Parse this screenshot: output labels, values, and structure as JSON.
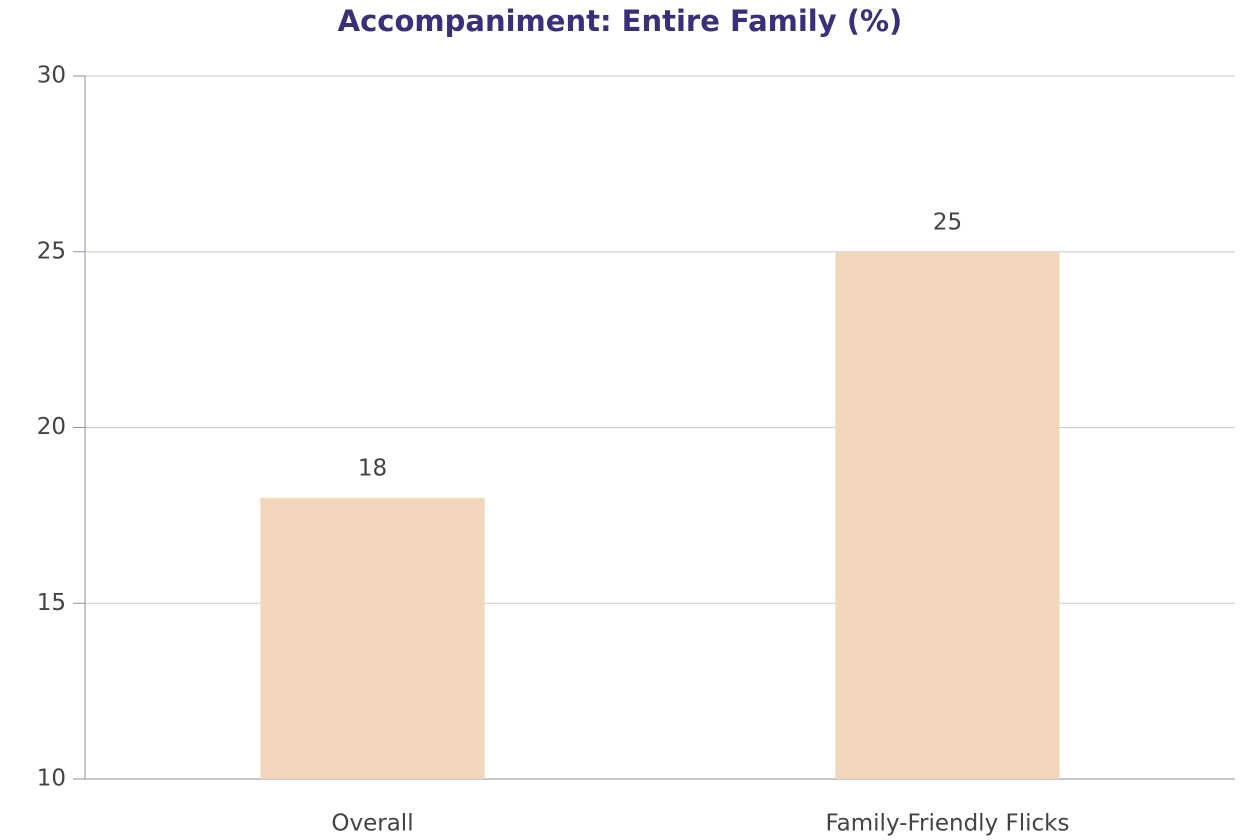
{
  "chart_data": {
    "type": "bar",
    "title": "Accompaniment: Entire Family (%)",
    "categories": [
      "Overall",
      "Family-Friendly Flicks"
    ],
    "values": [
      18,
      25
    ],
    "color": "#f1d6bc",
    "ylim": [
      10,
      30
    ],
    "yticks": [
      10,
      15,
      20,
      25,
      30
    ],
    "grid": true
  }
}
